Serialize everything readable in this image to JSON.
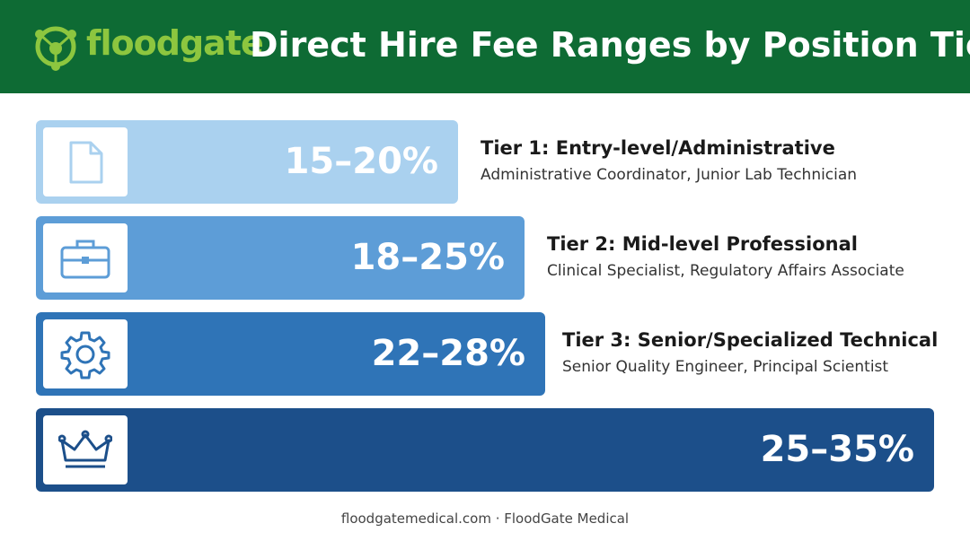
{
  "header": {
    "brand": "floodgate",
    "title": "Direct Hire Fee Ranges by Position Tier"
  },
  "tiers": [
    {
      "range": "15–20%",
      "title": "Tier 1: Entry-level/Administrative",
      "examples": "Administrative Coordinator, Junior Lab Technician"
    },
    {
      "range": "18–25%",
      "title": "Tier 2: Mid-level Professional",
      "examples": "Clinical Specialist, Regulatory Affairs Associate"
    },
    {
      "range": "22–28%",
      "title": "Tier 3: Senior/Specialized Technical",
      "examples": "Senior Quality Engineer, Principal Scientist"
    },
    {
      "range": "25–35%"
    }
  ],
  "footer": "floodgatemedical.com · FloodGate Medical"
}
